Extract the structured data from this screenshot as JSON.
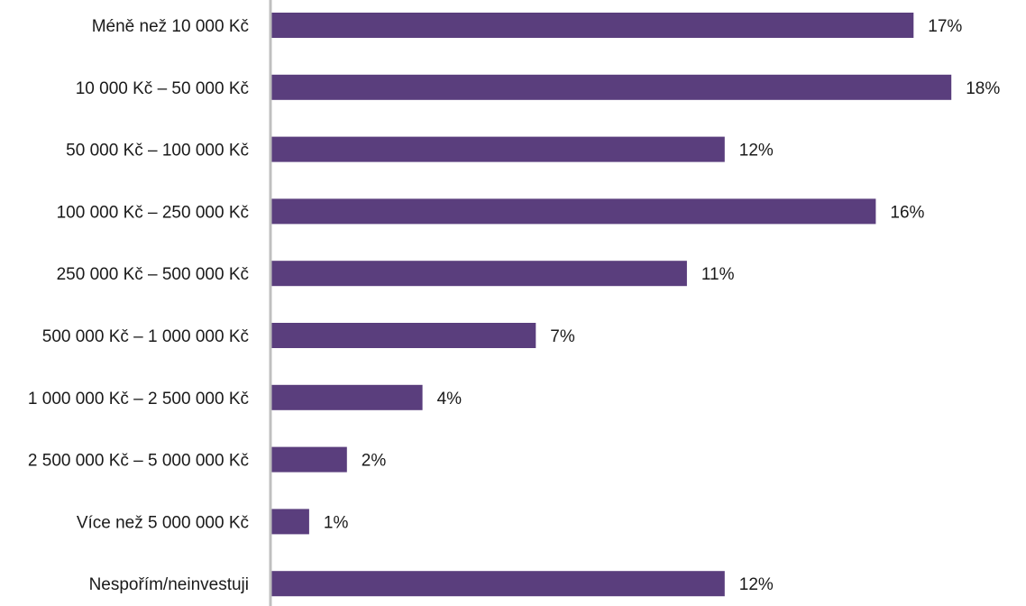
{
  "chart_data": {
    "type": "bar",
    "orientation": "horizontal",
    "categories": [
      "Méně než 10 000 Kč",
      "10 000 Kč – 50 000 Kč",
      "50 000 Kč – 100 000 Kč",
      "100 000 Kč – 250 000 Kč",
      "250 000 Kč – 500 000 Kč",
      "500 000 Kč – 1 000 000 Kč",
      "1 000 000 Kč – 2 500 000 Kč",
      "2 500 000 Kč – 5 000 000 Kč",
      "Více než 5 000 000 Kč",
      "Nespořím/neinvestuji"
    ],
    "values": [
      17,
      18,
      12,
      16,
      11,
      7,
      4,
      2,
      1,
      12
    ],
    "value_labels": [
      "17%",
      "18%",
      "12%",
      "16%",
      "11%",
      "7%",
      "4%",
      "2%",
      "1%",
      "12%"
    ],
    "title": "",
    "xlabel": "",
    "ylabel": "",
    "xlim": [
      0,
      18
    ],
    "grid": false,
    "legend": "none",
    "bar_color": "#5a3e7d",
    "axis_color": "#bfbfbf"
  }
}
